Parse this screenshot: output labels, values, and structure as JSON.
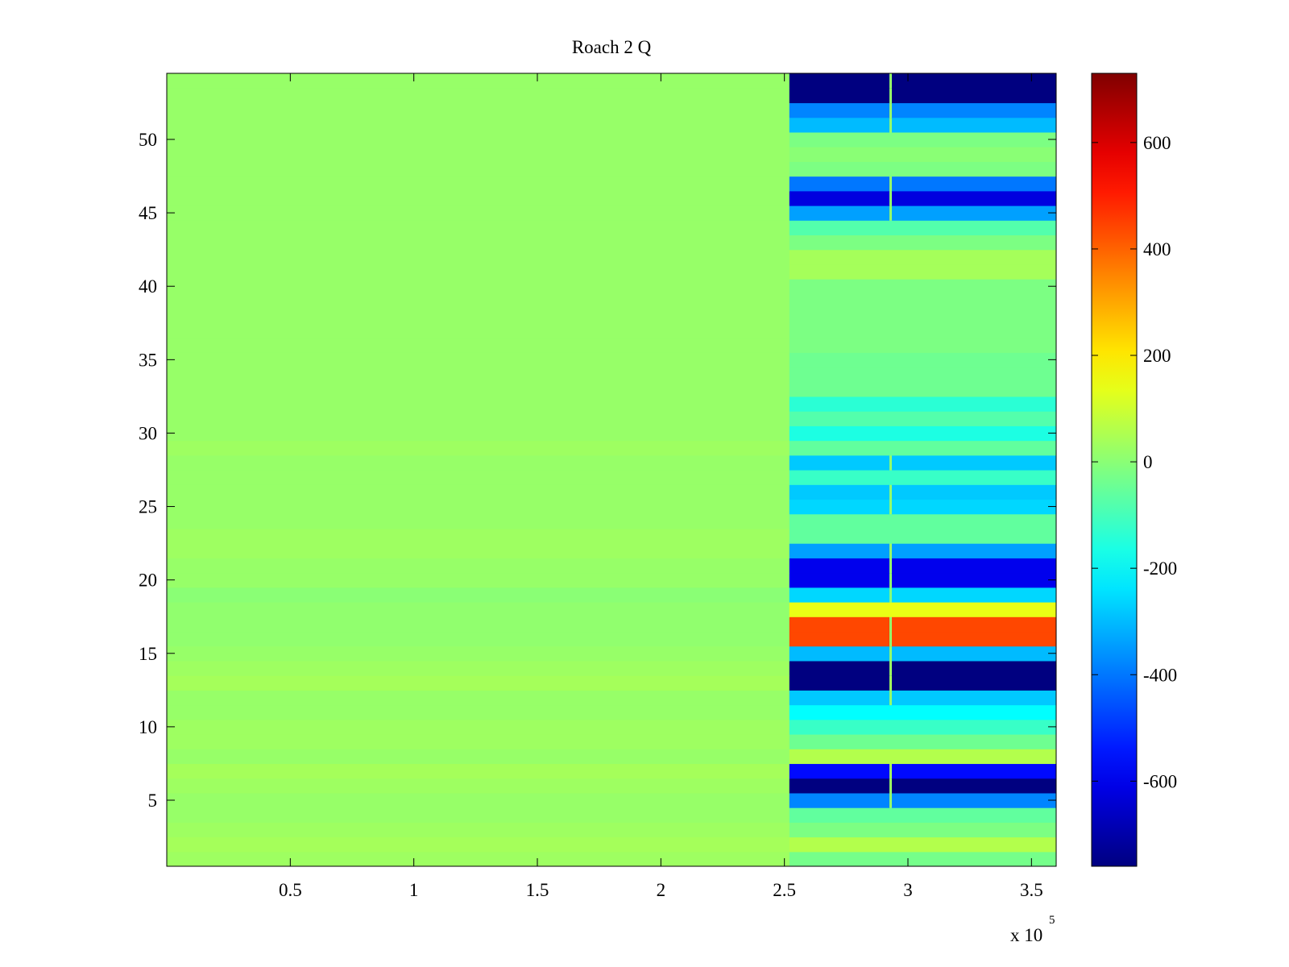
{
  "chart_data": {
    "type": "heatmap",
    "title": "Roach 2 Q",
    "xlabel": "",
    "ylabel": "",
    "x_exponent_label": "x 10",
    "x_exponent": "5",
    "xlim": [
      0,
      360000
    ],
    "ylim": [
      0.5,
      54.5
    ],
    "x_ticks": [
      {
        "value": 50000,
        "label": "0.5"
      },
      {
        "value": 100000,
        "label": "1"
      },
      {
        "value": 150000,
        "label": "1.5"
      },
      {
        "value": 200000,
        "label": "2"
      },
      {
        "value": 250000,
        "label": "2.5"
      },
      {
        "value": 300000,
        "label": "3"
      },
      {
        "value": 350000,
        "label": "3.5"
      }
    ],
    "y_ticks": [
      {
        "value": 5,
        "label": "5"
      },
      {
        "value": 10,
        "label": "10"
      },
      {
        "value": 15,
        "label": "15"
      },
      {
        "value": 20,
        "label": "20"
      },
      {
        "value": 25,
        "label": "25"
      },
      {
        "value": 30,
        "label": "30"
      },
      {
        "value": 35,
        "label": "35"
      },
      {
        "value": 40,
        "label": "40"
      },
      {
        "value": 45,
        "label": "45"
      },
      {
        "value": 50,
        "label": "50"
      }
    ],
    "colormap": "jet",
    "clim": [
      -760,
      730
    ],
    "colorbar_ticks": [
      {
        "value": 600,
        "label": "600"
      },
      {
        "value": 400,
        "label": "400"
      },
      {
        "value": 200,
        "label": "200"
      },
      {
        "value": 0,
        "label": "0"
      },
      {
        "value": -200,
        "label": "-200"
      },
      {
        "value": -400,
        "label": "-400"
      },
      {
        "value": -600,
        "label": "-600"
      }
    ],
    "rows": [
      1,
      2,
      3,
      4,
      5,
      6,
      7,
      8,
      9,
      10,
      11,
      12,
      13,
      14,
      15,
      16,
      17,
      18,
      19,
      20,
      21,
      22,
      23,
      24,
      25,
      26,
      27,
      28,
      29,
      30,
      31,
      32,
      33,
      34,
      35,
      36,
      37,
      38,
      39,
      40,
      41,
      42,
      43,
      44,
      45,
      46,
      47,
      48,
      49,
      50,
      51,
      52,
      53,
      54
    ],
    "change_point_x": 252000,
    "spike_x": 293000,
    "values_before_change": [
      30,
      40,
      30,
      20,
      20,
      30,
      40,
      20,
      30,
      30,
      20,
      20,
      40,
      30,
      20,
      10,
      10,
      10,
      0,
      20,
      20,
      30,
      30,
      20,
      20,
      20,
      20,
      20,
      30,
      20,
      20,
      20,
      20,
      20,
      20,
      20,
      20,
      20,
      20,
      20,
      20,
      20,
      20,
      20,
      20,
      20,
      20,
      20,
      20,
      20,
      20,
      20,
      20,
      20
    ],
    "values_after_change": [
      -30,
      60,
      -20,
      -60,
      -380,
      -760,
      -560,
      60,
      -40,
      -120,
      -200,
      -280,
      -760,
      -760,
      -300,
      440,
      440,
      140,
      -260,
      -600,
      -600,
      -340,
      -60,
      -60,
      -260,
      -280,
      -120,
      -280,
      -60,
      -160,
      -80,
      -140,
      -40,
      -40,
      -40,
      -20,
      -20,
      -20,
      -20,
      -20,
      40,
      40,
      -20,
      -80,
      -340,
      -620,
      -400,
      -20,
      0,
      -20,
      -300,
      -380,
      -760,
      -760
    ]
  }
}
